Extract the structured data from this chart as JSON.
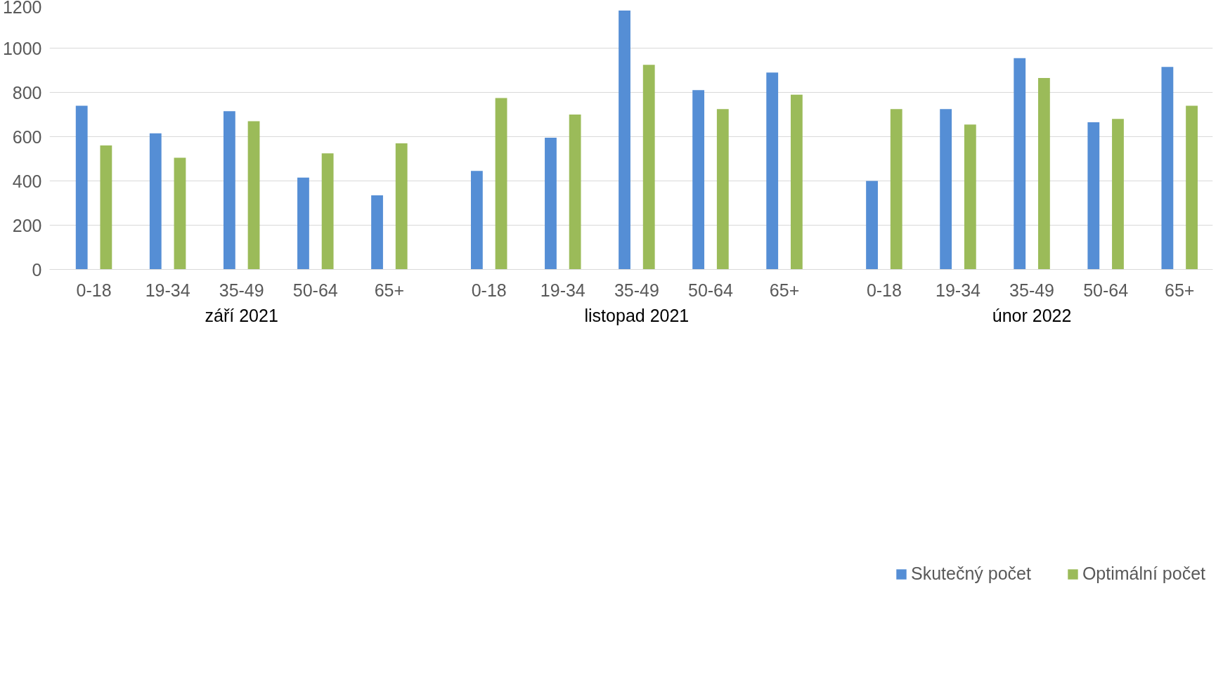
{
  "chart_data": {
    "type": "bar",
    "categories": [
      "0-18",
      "19-34",
      "35-49",
      "50-64",
      "65+",
      "0-18",
      "19-34",
      "35-49",
      "50-64",
      "65+",
      "0-18",
      "19-34",
      "35-49",
      "50-64",
      "65+"
    ],
    "annotations": [
      "září 2021",
      "listopad 2021",
      "únor 2022"
    ],
    "series": [
      {
        "name": "Skutečný počet",
        "color": "#558ed5",
        "values": [
          740,
          615,
          715,
          415,
          335,
          445,
          595,
          1170,
          810,
          890,
          400,
          725,
          955,
          665,
          915
        ]
      },
      {
        "name": "Optimální počet",
        "color": "#9bbb59",
        "values": [
          560,
          505,
          670,
          525,
          570,
          775,
          700,
          925,
          725,
          790,
          725,
          655,
          865,
          680,
          740
        ]
      }
    ],
    "ylim": [
      0,
      1200
    ],
    "yticks": [
      0,
      200,
      400,
      600,
      800,
      1000,
      1200
    ],
    "grid": "y",
    "legend": "bottom"
  }
}
